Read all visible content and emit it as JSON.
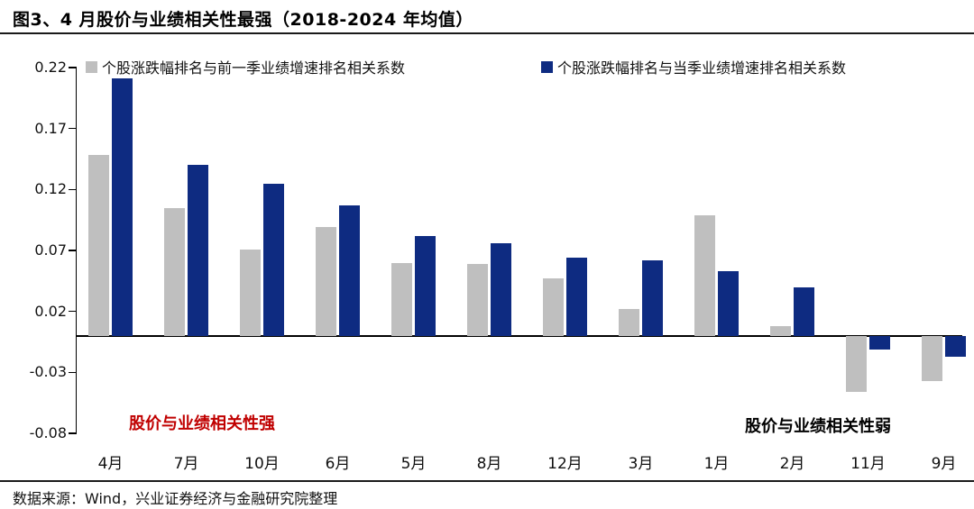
{
  "title": "图3、4 月股价与业绩相关性最强（2018-2024 年均值）",
  "legend": [
    {
      "label": "个股涨跌幅排名与前一季业绩增速排名相关系数",
      "color": "#BFBFBF"
    },
    {
      "label": "个股涨跌幅排名与当季业绩增速排名相关系数",
      "color": "#0E2B81"
    }
  ],
  "chart_data": {
    "type": "bar",
    "title": "图3、4 月股价与业绩相关性最强（2018-2024 年均值）",
    "categories": [
      "4月",
      "7月",
      "10月",
      "6月",
      "5月",
      "8月",
      "12月",
      "3月",
      "1月",
      "2月",
      "11月",
      "9月"
    ],
    "series": [
      {
        "name": "个股涨跌幅排名与前一季业绩增速排名相关系数",
        "color": "#BFBFBF",
        "values": [
          0.148,
          0.105,
          0.071,
          0.089,
          0.06,
          0.059,
          0.047,
          0.022,
          0.099,
          0.008,
          -0.046,
          -0.037
        ]
      },
      {
        "name": "个股涨跌幅排名与当季业绩增速排名相关系数",
        "color": "#0E2B81",
        "values": [
          0.211,
          0.14,
          0.125,
          0.107,
          0.082,
          0.076,
          0.064,
          0.062,
          0.053,
          0.04,
          -0.011,
          -0.017
        ]
      }
    ],
    "xlabel": "",
    "ylabel": "",
    "ylim": [
      -0.08,
      0.22
    ],
    "yticks": [
      0.22,
      0.17,
      0.12,
      0.07,
      0.02,
      -0.03,
      -0.08
    ],
    "grid": false,
    "legend_position": "top"
  },
  "annotations": {
    "strong": {
      "text": "股价与业绩相关性强",
      "color": "#C00000"
    },
    "weak": {
      "text": "股价与业绩相关性弱",
      "color": "#000000"
    }
  },
  "source": "数据来源：Wind，兴业证券经济与金融研究院整理"
}
